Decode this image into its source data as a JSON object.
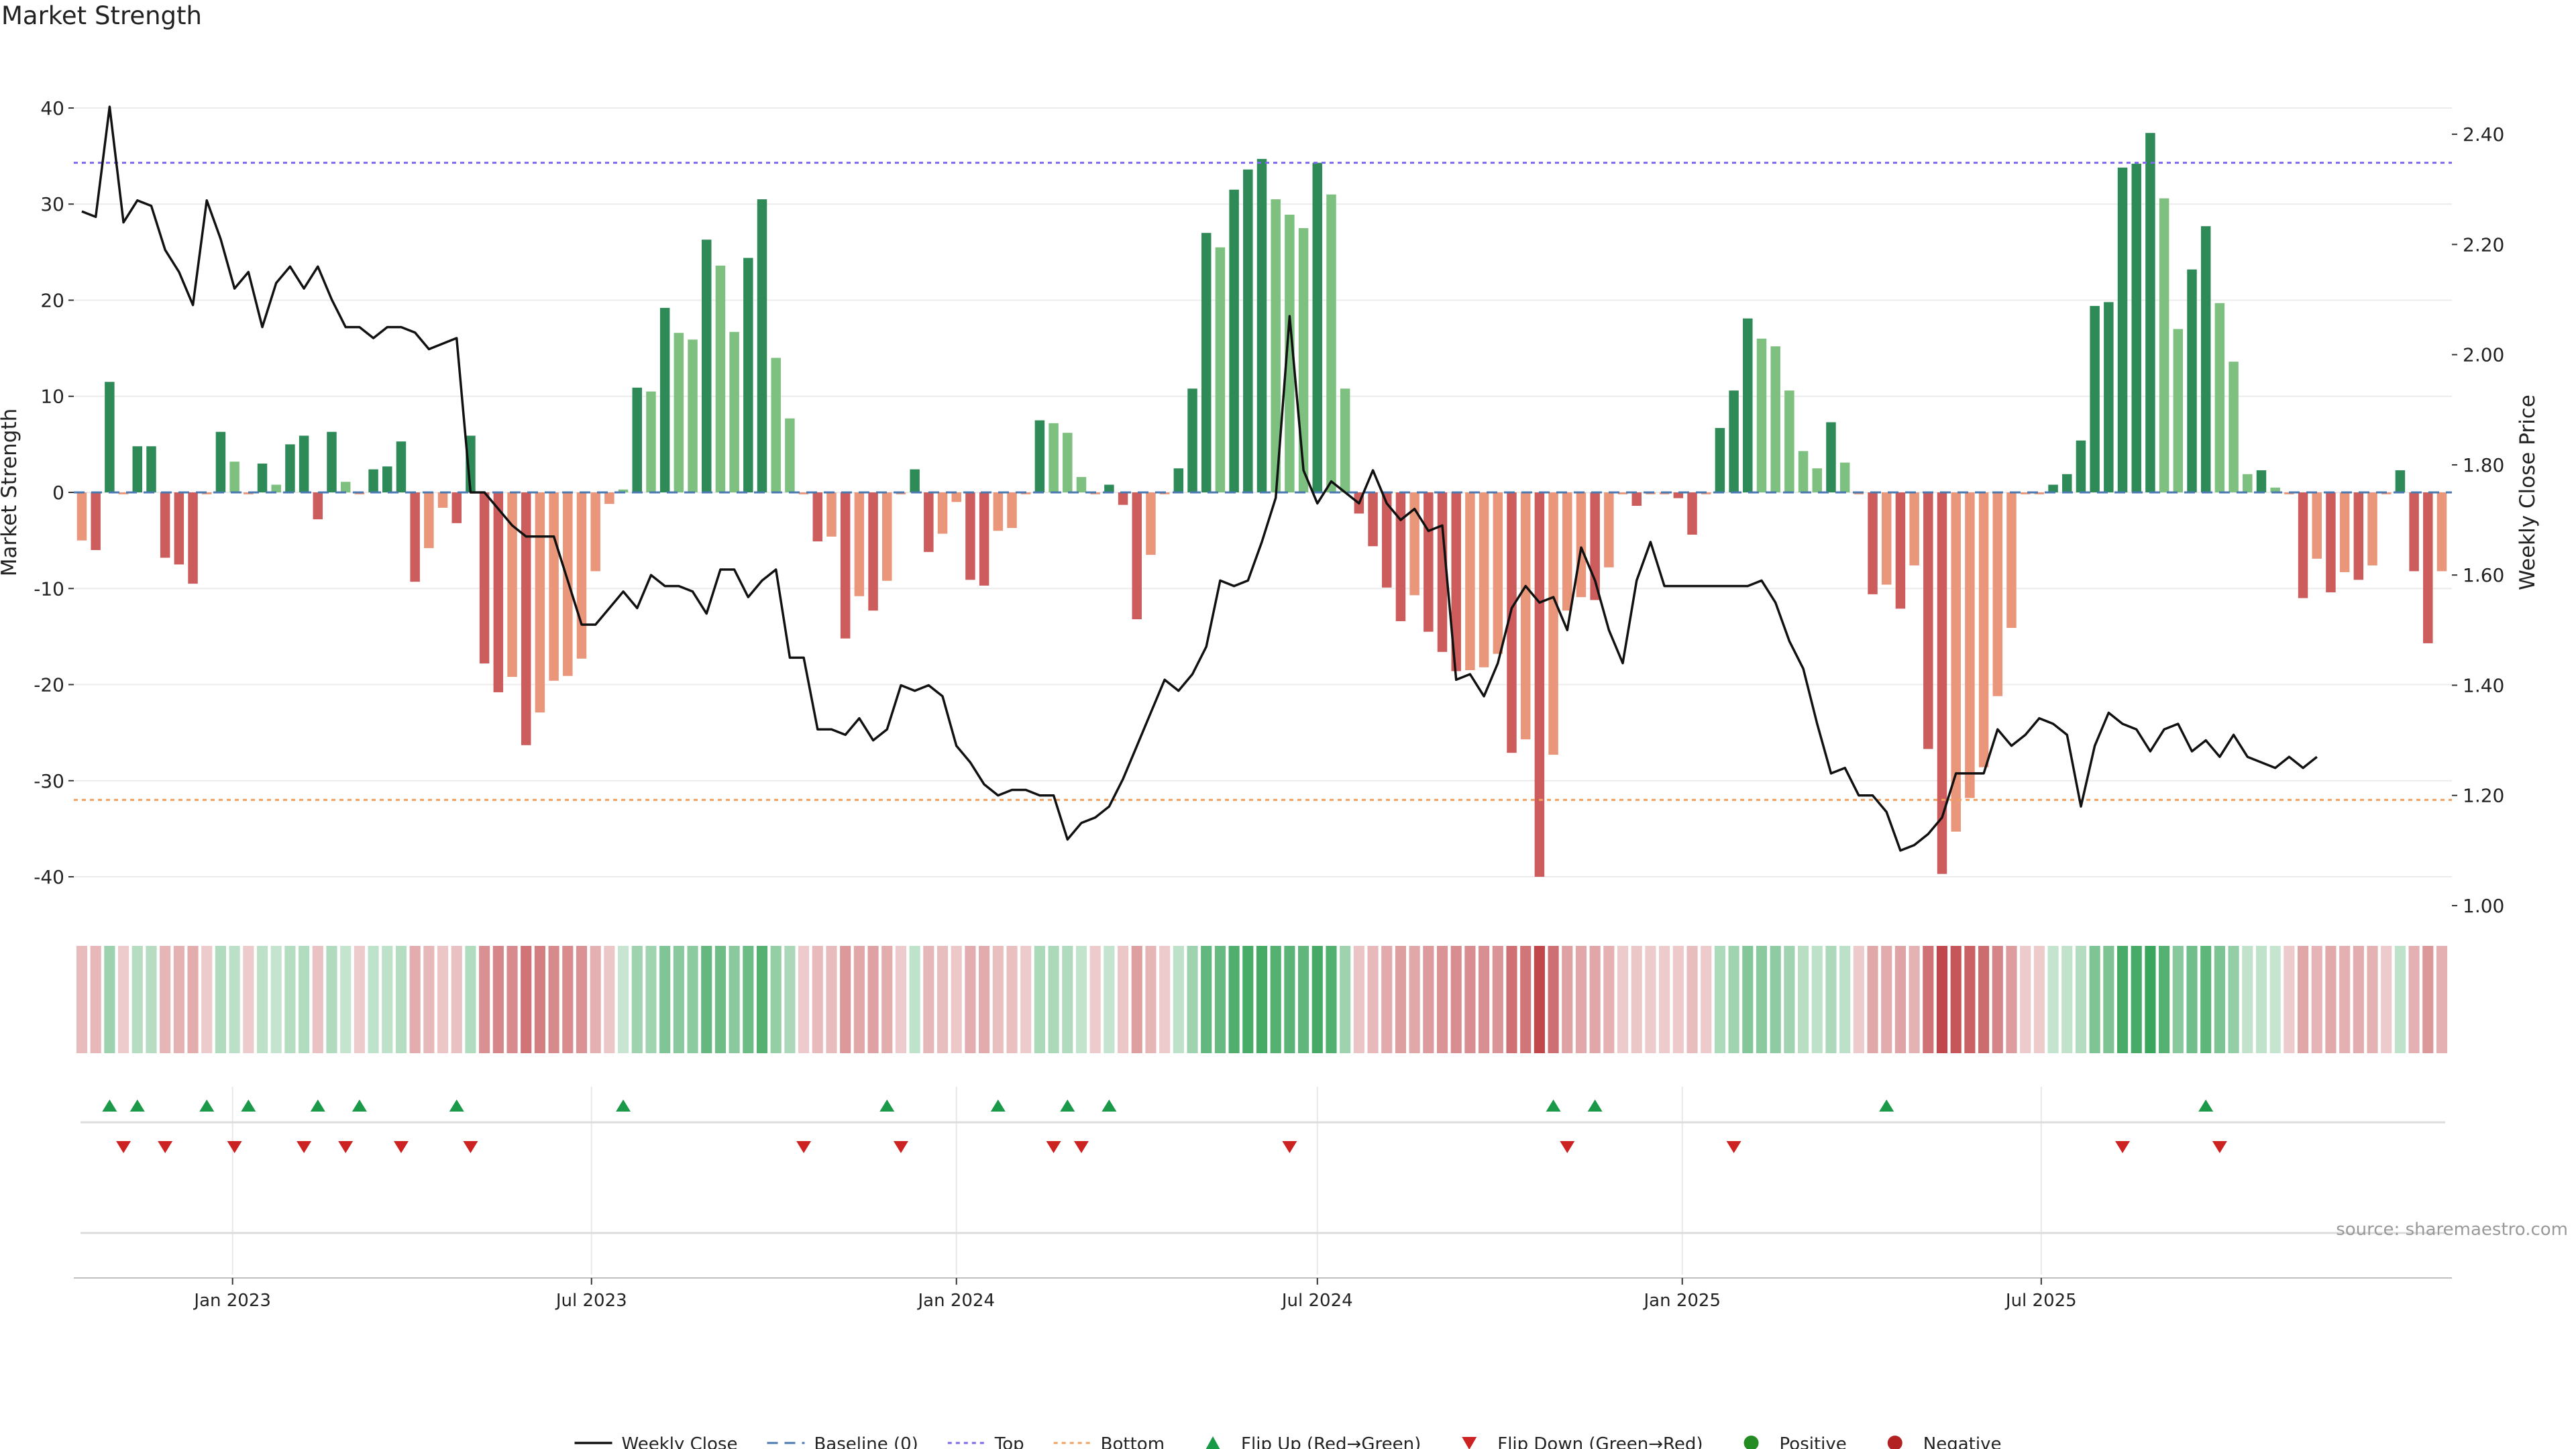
{
  "title": "Market Strength",
  "source": "source: sharemaestro.com",
  "colors": {
    "strong_green": "#2e8b57",
    "light_green": "#7dc07f",
    "strong_red": "#cd5c5c",
    "light_red": "#e9967a",
    "close_line": "#111111",
    "baseline": "#4a78b0",
    "top_line": "#7b68ee",
    "bottom_line": "#f0a060",
    "flip_up": "#1a9a48",
    "flip_down": "#cc2222",
    "positive": "#228b22",
    "negative": "#b22222"
  },
  "chart_data": {
    "type": "bar",
    "start_date": "2022-10-17",
    "week_step_days": 7,
    "strength": [
      -5,
      -6,
      11.5,
      -0.2,
      4.8,
      4.8,
      -6.8,
      -7.5,
      -9.5,
      -0.2,
      6.3,
      3.2,
      -0.2,
      3,
      0.8,
      5,
      5.9,
      -2.8,
      6.3,
      1.1,
      -0.2,
      2.4,
      2.7,
      5.3,
      -9.3,
      -5.8,
      -1.6,
      -3.2,
      5.9,
      -17.8,
      -20.8,
      -19.2,
      -26.3,
      -22.9,
      -19.6,
      -19.1,
      -17.3,
      -8.2,
      -1.2,
      0.3,
      10.9,
      10.5,
      19.2,
      16.6,
      15.9,
      26.3,
      23.6,
      16.7,
      24.4,
      30.5,
      14,
      7.7,
      -0.2,
      -5.1,
      -4.6,
      -15.2,
      -10.8,
      -12.3,
      -9.2,
      -0.2,
      2.4,
      -6.2,
      -4.3,
      -1,
      -9.1,
      -9.7,
      -4,
      -3.7,
      -0.2,
      7.5,
      7.2,
      6.2,
      1.6,
      -0.2,
      0.8,
      -1.3,
      -13.2,
      -6.5,
      -0.2,
      2.5,
      10.8,
      27,
      25.5,
      31.5,
      33.6,
      34.7,
      30.5,
      28.9,
      27.5,
      34.3,
      31,
      10.8,
      -2.2,
      -5.6,
      -9.9,
      -13.4,
      -10.7,
      -14.5,
      -16.6,
      -18.6,
      -18.5,
      -18.2,
      -16.8,
      -27.1,
      -25.7,
      -40,
      -27.3,
      -12.3,
      -10.9,
      -11.2,
      -7.8,
      -0.2,
      -1.4,
      -0.2,
      -0.2,
      -0.6,
      -4.4,
      -0.2,
      6.7,
      10.6,
      18.1,
      16,
      15.2,
      10.6,
      4.3,
      2.5,
      7.3,
      3.1,
      -0.2,
      -10.6,
      -9.6,
      -12.1,
      -7.6,
      -26.7,
      -39.7,
      -35.3,
      -31.8,
      -28.6,
      -21.2,
      -14.1,
      -0.2,
      -0.2,
      0.8,
      1.9,
      5.4,
      19.4,
      19.8,
      33.8,
      34.2,
      37.4,
      30.6,
      17,
      23.2,
      27.7,
      19.7,
      13.6,
      1.9,
      2.3,
      0.5,
      -0.2,
      -11,
      -6.9,
      -10.4,
      -8.3,
      -9.1,
      -7.6,
      -0.2,
      2.3,
      -8.2,
      -15.7,
      -8.2
    ],
    "weekly_close": [
      2.26,
      2.25,
      2.45,
      2.24,
      2.28,
      2.27,
      2.19,
      2.15,
      2.09,
      2.28,
      2.21,
      2.12,
      2.15,
      2.05,
      2.13,
      2.16,
      2.12,
      2.16,
      2.1,
      2.05,
      2.05,
      2.03,
      2.05,
      2.05,
      2.04,
      2.01,
      2.02,
      2.03,
      1.75,
      1.75,
      1.72,
      1.69,
      1.67,
      1.67,
      1.67,
      1.59,
      1.51,
      1.51,
      1.54,
      1.57,
      1.54,
      1.6,
      1.58,
      1.58,
      1.57,
      1.53,
      1.61,
      1.61,
      1.56,
      1.59,
      1.61,
      1.45,
      1.45,
      1.32,
      1.32,
      1.31,
      1.34,
      1.3,
      1.32,
      1.4,
      1.39,
      1.4,
      1.38,
      1.29,
      1.26,
      1.22,
      1.2,
      1.21,
      1.21,
      1.2,
      1.2,
      1.12,
      1.15,
      1.16,
      1.18,
      1.23,
      1.29,
      1.35,
      1.41,
      1.39,
      1.42,
      1.47,
      1.59,
      1.58,
      1.59,
      1.66,
      1.74,
      2.07,
      1.79,
      1.73,
      1.77,
      1.75,
      1.73,
      1.79,
      1.73,
      1.7,
      1.72,
      1.68,
      1.69,
      1.41,
      1.42,
      1.38,
      1.44,
      1.54,
      1.58,
      1.55,
      1.56,
      1.5,
      1.65,
      1.59,
      1.5,
      1.44,
      1.59,
      1.66,
      1.58,
      1.58,
      1.58,
      1.58,
      1.58,
      1.58,
      1.58,
      1.59,
      1.55,
      1.48,
      1.43,
      1.33,
      1.24,
      1.25,
      1.2,
      1.2,
      1.17,
      1.1,
      1.11,
      1.13,
      1.16,
      1.24,
      1.24,
      1.24,
      1.32,
      1.29,
      1.31,
      1.34,
      1.33,
      1.31,
      1.18,
      1.29,
      1.35,
      1.33,
      1.32,
      1.28,
      1.32,
      1.33,
      1.28,
      1.3,
      1.27,
      1.31,
      1.27,
      1.26,
      1.25,
      1.27,
      1.25,
      1.27
    ],
    "flip_up_weeks": [
      2,
      4,
      9,
      12,
      17,
      20,
      27,
      39,
      58,
      66,
      71,
      74,
      106,
      109,
      130,
      153
    ],
    "flip_down_weeks": [
      3,
      6,
      11,
      16,
      19,
      23,
      28,
      52,
      59,
      70,
      72,
      87,
      107,
      119,
      147,
      154
    ],
    "y_left": {
      "label": "Market Strength",
      "ylim": [
        -43,
        43
      ],
      "ticks": [
        -40,
        -30,
        -20,
        -10,
        0,
        10,
        20,
        30,
        40
      ]
    },
    "y_right": {
      "label": "Weekly Close Price",
      "ylim": [
        1.0,
        2.5
      ],
      "ticks": [
        "1.00",
        "1.20",
        "1.40",
        "1.60",
        "1.80",
        "2.00",
        "2.20",
        "2.40"
      ]
    },
    "x_ticks": [
      {
        "label": "Jan 2023",
        "date": "2023-01-01"
      },
      {
        "label": "Jul 2023",
        "date": "2023-07-01"
      },
      {
        "label": "Jan 2024",
        "date": "2024-01-01"
      },
      {
        "label": "Jul 2024",
        "date": "2024-07-01"
      },
      {
        "label": "Jan 2025",
        "date": "2025-01-01"
      },
      {
        "label": "Jul 2025",
        "date": "2025-07-01"
      }
    ],
    "baseline_value": 0,
    "top_value": 34.3,
    "bottom_value": -32,
    "grid": true,
    "legend_position": "bottom",
    "legend": [
      {
        "label": "Weekly Close",
        "symbol": "solid-line",
        "color": "#111111"
      },
      {
        "label": "Baseline (0)",
        "symbol": "dashed-line",
        "color": "#4a78b0"
      },
      {
        "label": "Top",
        "symbol": "dotted-line",
        "color": "#7b68ee"
      },
      {
        "label": "Bottom",
        "symbol": "dotted-line",
        "color": "#f0a060"
      },
      {
        "label": "Flip Up (Red→Green)",
        "symbol": "triangle-up",
        "color": "#1a9a48"
      },
      {
        "label": "Flip Down (Green→Red)",
        "symbol": "triangle-down",
        "color": "#cc2222"
      },
      {
        "label": "Positive",
        "symbol": "circle",
        "color": "#228b22"
      },
      {
        "label": "Negative",
        "symbol": "circle",
        "color": "#b22222"
      }
    ]
  }
}
